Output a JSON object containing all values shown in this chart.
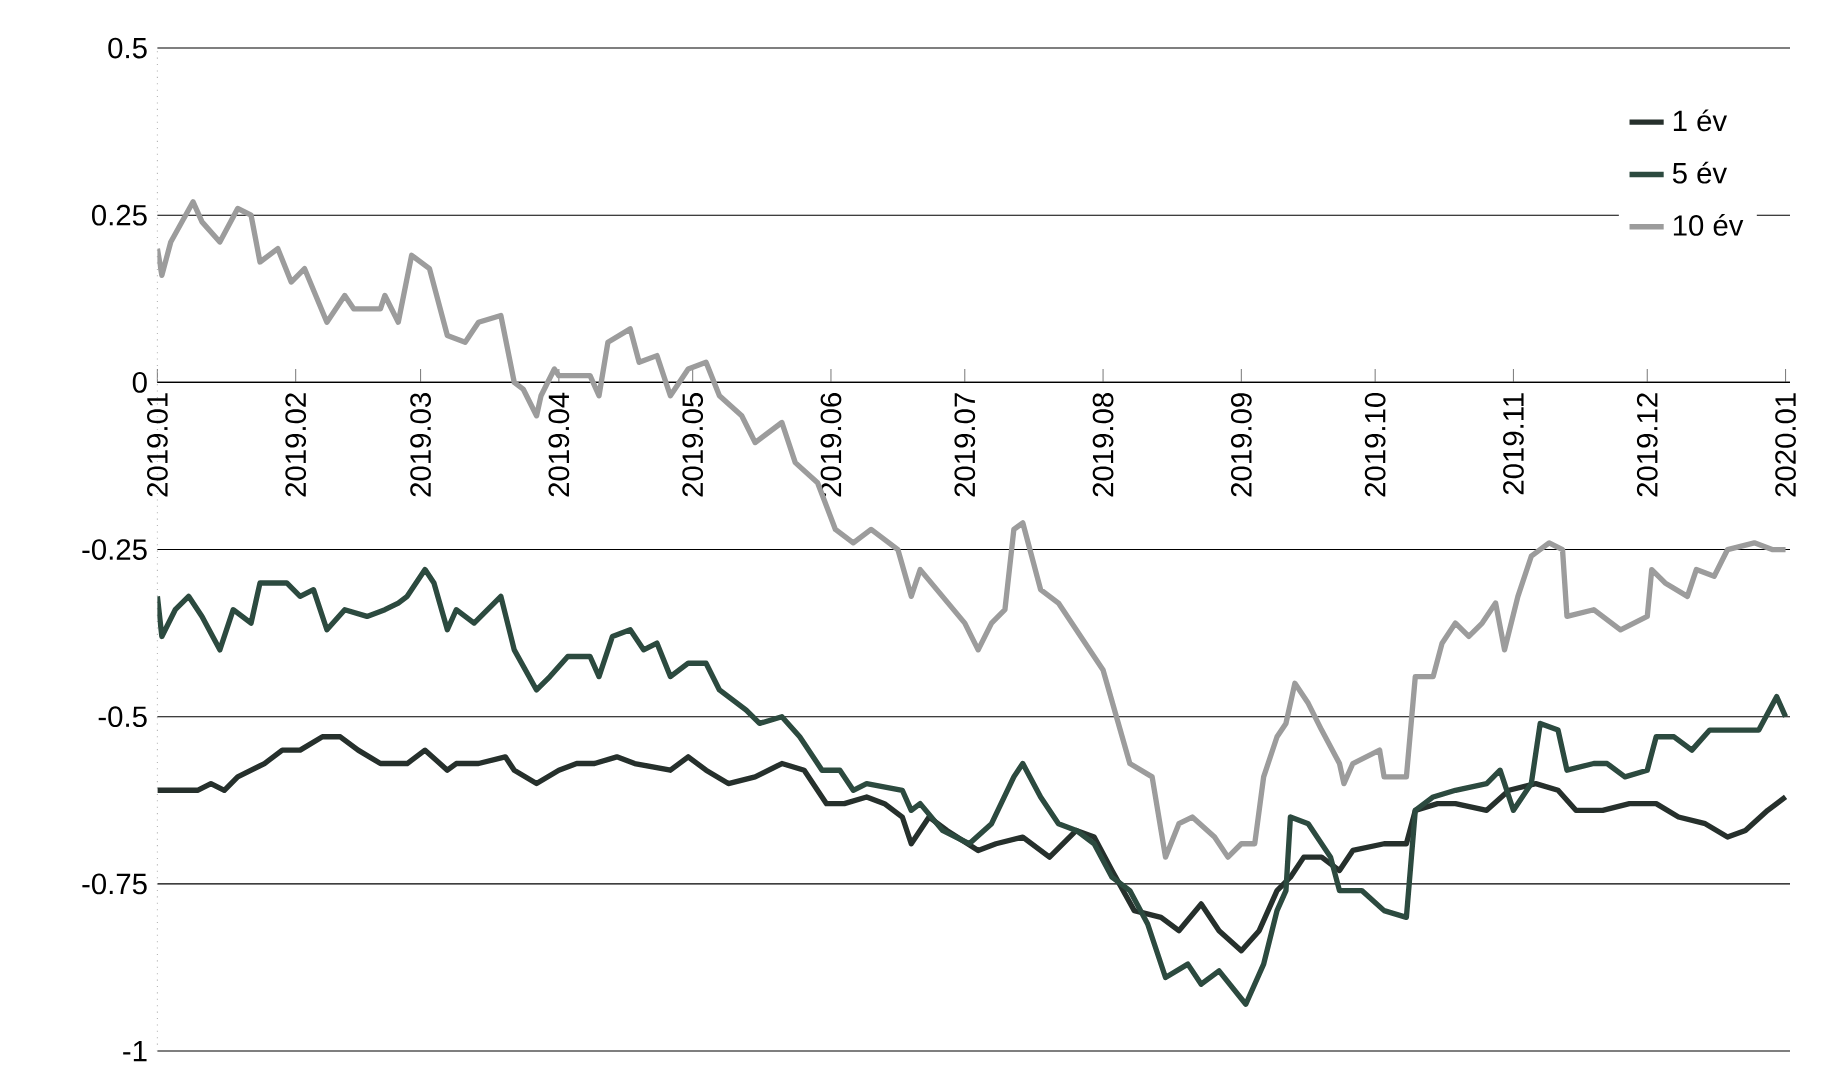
{
  "chart_data": {
    "type": "line",
    "xlim": [
      "2019-01-01",
      "2020-01-02"
    ],
    "xticks": [
      {
        "value": "2019-01-01",
        "label": "2019.01"
      },
      {
        "value": "2019-02-01",
        "label": "2019.02"
      },
      {
        "value": "2019-03-01",
        "label": "2019.03"
      },
      {
        "value": "2019-04-01",
        "label": "2019.04"
      },
      {
        "value": "2019-05-01",
        "label": "2019.05"
      },
      {
        "value": "2019-06-01",
        "label": "2019.06"
      },
      {
        "value": "2019-07-01",
        "label": "2019.07"
      },
      {
        "value": "2019-08-01",
        "label": "2019.08"
      },
      {
        "value": "2019-09-01",
        "label": "2019.09"
      },
      {
        "value": "2019-10-01",
        "label": "2019.10"
      },
      {
        "value": "2019-11-01",
        "label": "2019.11"
      },
      {
        "value": "2019-12-01",
        "label": "2019.12"
      },
      {
        "value": "2020-01-01",
        "label": "2020.01"
      }
    ],
    "ylim": [
      -1,
      0.5
    ],
    "yticks": [
      -1,
      -0.75,
      -0.5,
      -0.25,
      0,
      0.25,
      0.5
    ],
    "grid": "y",
    "legend": "top right",
    "series": [
      {
        "name": "1 év",
        "color": "#26302c",
        "x": [
          "2019-01-01",
          "2019-01-04",
          "2019-01-10",
          "2019-01-13",
          "2019-01-16",
          "2019-01-19",
          "2019-01-25",
          "2019-01-29",
          "2019-02-02",
          "2019-02-07",
          "2019-02-11",
          "2019-02-15",
          "2019-02-20",
          "2019-02-26",
          "2019-03-02",
          "2019-03-07",
          "2019-03-09",
          "2019-03-14",
          "2019-03-20",
          "2019-03-22",
          "2019-03-27",
          "2019-04-01",
          "2019-04-05",
          "2019-04-09",
          "2019-04-14",
          "2019-04-18",
          "2019-04-26",
          "2019-04-30",
          "2019-05-04",
          "2019-05-09",
          "2019-05-15",
          "2019-05-21",
          "2019-05-26",
          "2019-05-31",
          "2019-06-04",
          "2019-06-09",
          "2019-06-13",
          "2019-06-17",
          "2019-06-19",
          "2019-06-23",
          "2019-06-27",
          "2019-07-04",
          "2019-07-08",
          "2019-07-14",
          "2019-07-20",
          "2019-07-26",
          "2019-07-30",
          "2019-08-03",
          "2019-08-08",
          "2019-08-14",
          "2019-08-18",
          "2019-08-23",
          "2019-08-27",
          "2019-09-01",
          "2019-09-05",
          "2019-09-09",
          "2019-09-12",
          "2019-09-15",
          "2019-09-19",
          "2019-09-23",
          "2019-09-26",
          "2019-10-03",
          "2019-10-08",
          "2019-10-10",
          "2019-10-15",
          "2019-10-19",
          "2019-10-26",
          "2019-10-31",
          "2019-11-06",
          "2019-11-11",
          "2019-11-15",
          "2019-11-21",
          "2019-11-27",
          "2019-12-03",
          "2019-12-08",
          "2019-12-14",
          "2019-12-19",
          "2019-12-23",
          "2019-12-28",
          "2020-01-01"
        ],
        "values": [
          -0.61,
          -0.61,
          -0.61,
          -0.6,
          -0.61,
          -0.59,
          -0.57,
          -0.55,
          -0.55,
          -0.53,
          -0.53,
          -0.55,
          -0.57,
          -0.57,
          -0.55,
          -0.58,
          -0.57,
          -0.57,
          -0.56,
          -0.58,
          -0.6,
          -0.58,
          -0.57,
          -0.57,
          -0.56,
          -0.57,
          -0.58,
          -0.56,
          -0.58,
          -0.6,
          -0.59,
          -0.57,
          -0.58,
          -0.63,
          -0.63,
          -0.62,
          -0.63,
          -0.65,
          -0.69,
          -0.65,
          -0.67,
          -0.7,
          -0.69,
          -0.68,
          -0.71,
          -0.67,
          -0.68,
          -0.73,
          -0.79,
          -0.8,
          -0.82,
          -0.78,
          -0.82,
          -0.85,
          -0.82,
          -0.76,
          -0.74,
          -0.71,
          -0.71,
          -0.73,
          -0.7,
          -0.69,
          -0.69,
          -0.64,
          -0.63,
          -0.63,
          -0.64,
          -0.61,
          -0.6,
          -0.61,
          -0.64,
          -0.64,
          -0.63,
          -0.63,
          -0.65,
          -0.66,
          -0.68,
          -0.67,
          -0.64,
          -0.62
        ]
      },
      {
        "name": "5 év",
        "color": "#2c4a3f",
        "x": [
          "2019-01-01",
          "2019-01-02",
          "2019-01-05",
          "2019-01-08",
          "2019-01-11",
          "2019-01-15",
          "2019-01-18",
          "2019-01-22",
          "2019-01-24",
          "2019-01-30",
          "2019-02-02",
          "2019-02-05",
          "2019-02-08",
          "2019-02-12",
          "2019-02-17",
          "2019-02-21",
          "2019-02-24",
          "2019-02-26",
          "2019-03-02",
          "2019-03-04",
          "2019-03-07",
          "2019-03-09",
          "2019-03-13",
          "2019-03-19",
          "2019-03-22",
          "2019-03-27",
          "2019-03-30",
          "2019-04-03",
          "2019-04-08",
          "2019-04-10",
          "2019-04-13",
          "2019-04-17",
          "2019-04-20",
          "2019-04-23",
          "2019-04-26",
          "2019-04-30",
          "2019-05-04",
          "2019-05-07",
          "2019-05-13",
          "2019-05-16",
          "2019-05-21",
          "2019-05-25",
          "2019-05-30",
          "2019-06-03",
          "2019-06-06",
          "2019-06-09",
          "2019-06-17",
          "2019-06-19",
          "2019-06-21",
          "2019-06-26",
          "2019-07-02",
          "2019-07-07",
          "2019-07-12",
          "2019-07-14",
          "2019-07-18",
          "2019-07-22",
          "2019-07-26",
          "2019-07-30",
          "2019-08-03",
          "2019-08-07",
          "2019-08-11",
          "2019-08-15",
          "2019-08-20",
          "2019-08-23",
          "2019-08-27",
          "2019-09-02",
          "2019-09-06",
          "2019-09-09",
          "2019-09-11",
          "2019-09-12",
          "2019-09-16",
          "2019-09-21",
          "2019-09-23",
          "2019-09-28",
          "2019-10-03",
          "2019-10-08",
          "2019-10-10",
          "2019-10-14",
          "2019-10-19",
          "2019-10-26",
          "2019-10-29",
          "2019-11-01",
          "2019-11-05",
          "2019-11-07",
          "2019-11-11",
          "2019-11-13",
          "2019-11-19",
          "2019-11-22",
          "2019-11-26",
          "2019-12-01",
          "2019-12-03",
          "2019-12-07",
          "2019-12-11",
          "2019-12-15",
          "2019-12-20",
          "2019-12-26",
          "2019-12-30",
          "2020-01-01"
        ],
        "values": [
          -0.32,
          -0.38,
          -0.34,
          -0.32,
          -0.35,
          -0.4,
          -0.34,
          -0.36,
          -0.3,
          -0.3,
          -0.32,
          -0.31,
          -0.37,
          -0.34,
          -0.35,
          -0.34,
          -0.33,
          -0.32,
          -0.28,
          -0.3,
          -0.37,
          -0.34,
          -0.36,
          -0.32,
          -0.4,
          -0.46,
          -0.44,
          -0.41,
          -0.41,
          -0.44,
          -0.38,
          -0.37,
          -0.4,
          -0.39,
          -0.44,
          -0.42,
          -0.42,
          -0.46,
          -0.49,
          -0.51,
          -0.5,
          -0.53,
          -0.58,
          -0.58,
          -0.61,
          -0.6,
          -0.61,
          -0.64,
          -0.63,
          -0.67,
          -0.69,
          -0.66,
          -0.59,
          -0.57,
          -0.62,
          -0.66,
          -0.67,
          -0.69,
          -0.74,
          -0.76,
          -0.81,
          -0.89,
          -0.87,
          -0.9,
          -0.88,
          -0.93,
          -0.87,
          -0.79,
          -0.76,
          -0.65,
          -0.66,
          -0.71,
          -0.76,
          -0.76,
          -0.79,
          -0.8,
          -0.64,
          -0.62,
          -0.61,
          -0.6,
          -0.58,
          -0.64,
          -0.6,
          -0.51,
          -0.52,
          -0.58,
          -0.57,
          -0.57,
          -0.59,
          -0.58,
          -0.53,
          -0.53,
          -0.55,
          -0.52,
          -0.52,
          -0.52,
          -0.47,
          -0.5
        ]
      },
      {
        "name": "10 év",
        "color": "#9c9c9c",
        "x": [
          "2019-01-01",
          "2019-01-02",
          "2019-01-04",
          "2019-01-09",
          "2019-01-11",
          "2019-01-15",
          "2019-01-19",
          "2019-01-22",
          "2019-01-24",
          "2019-01-28",
          "2019-01-31",
          "2019-02-03",
          "2019-02-08",
          "2019-02-12",
          "2019-02-14",
          "2019-02-20",
          "2019-02-21",
          "2019-02-24",
          "2019-02-27",
          "2019-03-03",
          "2019-03-07",
          "2019-03-11",
          "2019-03-14",
          "2019-03-19",
          "2019-03-22",
          "2019-03-24",
          "2019-03-27",
          "2019-03-28",
          "2019-03-31",
          "2019-04-01",
          "2019-04-08",
          "2019-04-10",
          "2019-04-12",
          "2019-04-17",
          "2019-04-19",
          "2019-04-23",
          "2019-04-26",
          "2019-04-30",
          "2019-05-04",
          "2019-05-07",
          "2019-05-12",
          "2019-05-15",
          "2019-05-21",
          "2019-05-24",
          "2019-05-29",
          "2019-06-02",
          "2019-06-06",
          "2019-06-10",
          "2019-06-16",
          "2019-06-19",
          "2019-06-21",
          "2019-06-26",
          "2019-07-01",
          "2019-07-04",
          "2019-07-07",
          "2019-07-10",
          "2019-07-12",
          "2019-07-14",
          "2019-07-18",
          "2019-07-22",
          "2019-07-27",
          "2019-08-01",
          "2019-08-04",
          "2019-08-07",
          "2019-08-12",
          "2019-08-15",
          "2019-08-18",
          "2019-08-21",
          "2019-08-26",
          "2019-08-29",
          "2019-09-01",
          "2019-09-04",
          "2019-09-06",
          "2019-09-09",
          "2019-09-11",
          "2019-09-13",
          "2019-09-16",
          "2019-09-19",
          "2019-09-23",
          "2019-09-24",
          "2019-09-26",
          "2019-10-02",
          "2019-10-03",
          "2019-10-08",
          "2019-10-10",
          "2019-10-14",
          "2019-10-16",
          "2019-10-19",
          "2019-10-22",
          "2019-10-25",
          "2019-10-28",
          "2019-10-30",
          "2019-11-02",
          "2019-11-05",
          "2019-11-09",
          "2019-11-12",
          "2019-11-13",
          "2019-11-19",
          "2019-11-25",
          "2019-12-01",
          "2019-12-02",
          "2019-12-05",
          "2019-12-10",
          "2019-12-12",
          "2019-12-16",
          "2019-12-19",
          "2019-12-25",
          "2019-12-29",
          "2020-01-01"
        ],
        "values": [
          0.2,
          0.16,
          0.21,
          0.27,
          0.24,
          0.21,
          0.26,
          0.25,
          0.18,
          0.2,
          0.15,
          0.17,
          0.09,
          0.13,
          0.11,
          0.11,
          0.13,
          0.09,
          0.19,
          0.17,
          0.07,
          0.06,
          0.09,
          0.1,
          0.0,
          -0.01,
          -0.05,
          -0.02,
          0.02,
          0.01,
          0.01,
          -0.02,
          0.06,
          0.08,
          0.03,
          0.04,
          -0.02,
          0.02,
          0.03,
          -0.02,
          -0.05,
          -0.09,
          -0.06,
          -0.12,
          -0.15,
          -0.22,
          -0.24,
          -0.22,
          -0.25,
          -0.32,
          -0.28,
          -0.32,
          -0.36,
          -0.4,
          -0.36,
          -0.34,
          -0.22,
          -0.21,
          -0.31,
          -0.33,
          -0.38,
          -0.43,
          -0.5,
          -0.57,
          -0.59,
          -0.71,
          -0.66,
          -0.65,
          -0.68,
          -0.71,
          -0.69,
          -0.69,
          -0.59,
          -0.53,
          -0.51,
          -0.45,
          -0.48,
          -0.52,
          -0.57,
          -0.6,
          -0.57,
          -0.55,
          -0.59,
          -0.59,
          -0.44,
          -0.44,
          -0.39,
          -0.36,
          -0.38,
          -0.36,
          -0.33,
          -0.4,
          -0.32,
          -0.26,
          -0.24,
          -0.25,
          -0.35,
          -0.34,
          -0.37,
          -0.35,
          -0.28,
          -0.3,
          -0.32,
          -0.28,
          -0.29,
          -0.25,
          -0.24,
          -0.25,
          -0.25
        ]
      }
    ]
  }
}
